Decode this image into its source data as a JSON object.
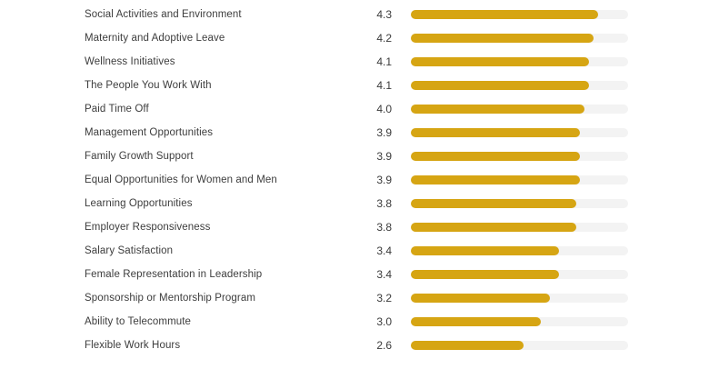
{
  "chart_data": {
    "type": "bar",
    "orientation": "horizontal",
    "title": "",
    "xlabel": "",
    "ylabel": "",
    "categories": [
      "Social Activities and Environment",
      "Maternity and Adoptive Leave",
      "Wellness Initiatives",
      "The People You Work With",
      "Paid Time Off",
      "Management Opportunities",
      "Family Growth Support",
      "Equal Opportunities for Women and Men",
      "Learning Opportunities",
      "Employer Responsiveness",
      "Salary Satisfaction",
      "Female Representation in Leadership",
      "Sponsorship or Mentorship Program",
      "Ability to Telecommute",
      "Flexible Work Hours"
    ],
    "values": [
      4.3,
      4.2,
      4.1,
      4.1,
      4.0,
      3.9,
      3.9,
      3.9,
      3.8,
      3.8,
      3.4,
      3.4,
      3.2,
      3.0,
      2.6
    ],
    "value_labels": [
      "4.3",
      "4.2",
      "4.1",
      "4.1",
      "4.0",
      "3.9",
      "3.9",
      "3.9",
      "3.8",
      "3.8",
      "3.4",
      "3.4",
      "3.2",
      "3.0",
      "2.6"
    ],
    "xlim": [
      0,
      5
    ],
    "grid": false,
    "legend": "none",
    "axis_ticks_visible": false,
    "colors": {
      "bar_fill": "#d6a513",
      "bar_track": "#f3f3f3",
      "label_text": "#3d3d3d",
      "value_text": "#3a3a3a",
      "background": "#ffffff"
    }
  }
}
